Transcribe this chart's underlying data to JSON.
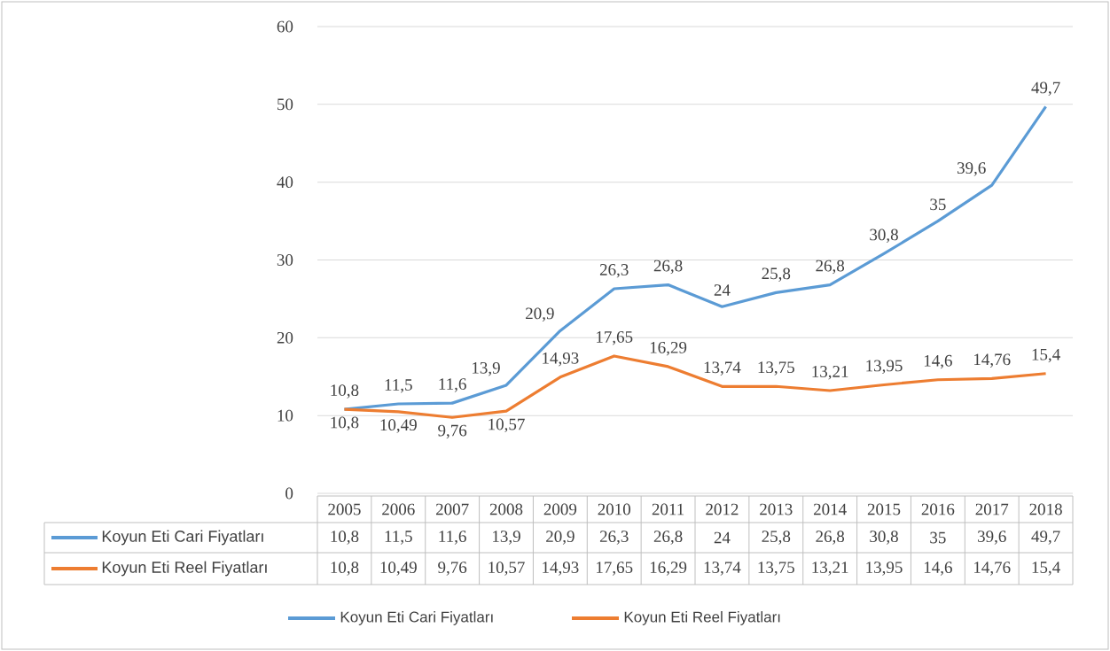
{
  "chart_data": {
    "type": "line",
    "categories": [
      "2005",
      "2006",
      "2007",
      "2008",
      "2009",
      "2010",
      "2011",
      "2012",
      "2013",
      "2014",
      "2015",
      "2016",
      "2017",
      "2018"
    ],
    "series": [
      {
        "name": "Koyun Eti Cari Fiyatları",
        "color": "#5b9bd5",
        "values": [
          10.8,
          11.5,
          11.6,
          13.9,
          20.9,
          26.3,
          26.8,
          24,
          25.8,
          26.8,
          30.8,
          35,
          39.6,
          49.7
        ],
        "value_labels": [
          "10,8",
          "11,5",
          "11,6",
          "13,9",
          "20,9",
          "26,3",
          "26,8",
          "24",
          "25,8",
          "26,8",
          "30,8",
          "35",
          "39,6",
          "49,7"
        ]
      },
      {
        "name": "Koyun Eti Reel Fiyatları",
        "color": "#ed7d31",
        "values": [
          10.8,
          10.49,
          9.76,
          10.57,
          14.93,
          17.65,
          16.29,
          13.74,
          13.75,
          13.21,
          13.95,
          14.6,
          14.76,
          15.4
        ],
        "value_labels": [
          "10,8",
          "10,49",
          "9,76",
          "10,57",
          "14,93",
          "17,65",
          "16,29",
          "13,74",
          "13,75",
          "13,21",
          "13,95",
          "14,6",
          "14,76",
          "15,4"
        ]
      }
    ],
    "ylim": [
      0,
      60
    ],
    "yticks": [
      0,
      10,
      20,
      30,
      40,
      50,
      60
    ],
    "grid": "y",
    "legend": "bottom"
  }
}
